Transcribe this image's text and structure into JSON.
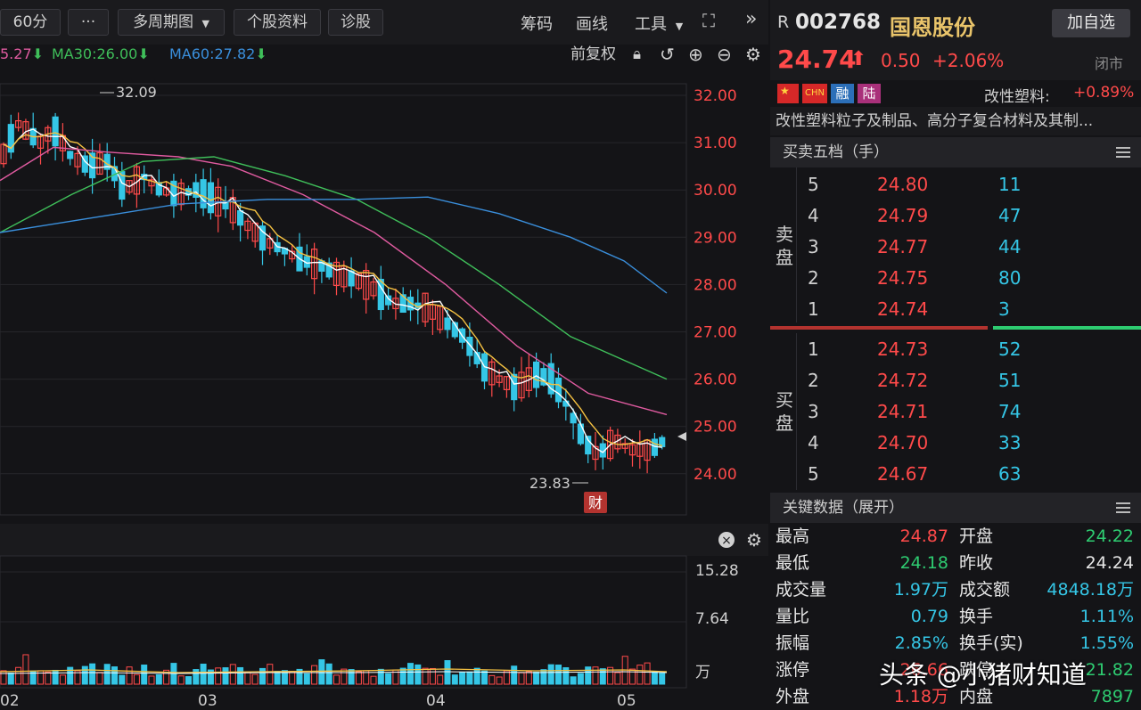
{
  "toolbar": {
    "period": "60分",
    "more": "···",
    "multi_period": "多周期图",
    "stock_info": "个股资料",
    "diagnose": "诊股",
    "chips": "筹码",
    "draw": "画线",
    "tools": "工具"
  },
  "ma_legend": {
    "ma_partial": "5.27",
    "ma30": "MA30:26.00",
    "ma60": "MA60:27.82",
    "adjust": "前复权"
  },
  "chart": {
    "y_labels": [
      "32.00",
      "31.00",
      "30.00",
      "29.00",
      "28.00",
      "27.00",
      "26.00",
      "25.00",
      "24.00"
    ],
    "high_marker": "32.09",
    "low_marker": "23.83",
    "cai_badge": "财",
    "vol_labels": [
      "15.28",
      "7.64",
      "万"
    ],
    "x_labels": [
      "02",
      "03",
      "04",
      "05"
    ]
  },
  "quote": {
    "r_tag": "R",
    "code": "002768",
    "name": "国恩股份",
    "add_watch": "加自选",
    "price": "24.74",
    "change": "0.50",
    "change_pct": "+2.06%",
    "status": "闭市",
    "tags": [
      "CHN",
      "融",
      "陆"
    ],
    "sector_label": "改性塑料:",
    "sector_pct": "+0.89%",
    "business": "改性塑料粒子及制品、高分子复合材料及其制..."
  },
  "orderbook": {
    "title": "买卖五档（手）",
    "sell_label": "卖盘",
    "buy_label": "买盘",
    "sell": [
      {
        "lvl": "5",
        "price": "24.80",
        "vol": "11"
      },
      {
        "lvl": "4",
        "price": "24.79",
        "vol": "47"
      },
      {
        "lvl": "3",
        "price": "24.77",
        "vol": "44"
      },
      {
        "lvl": "2",
        "price": "24.75",
        "vol": "80"
      },
      {
        "lvl": "1",
        "price": "24.74",
        "vol": "3"
      }
    ],
    "buy": [
      {
        "lvl": "1",
        "price": "24.73",
        "vol": "52"
      },
      {
        "lvl": "2",
        "price": "24.72",
        "vol": "51"
      },
      {
        "lvl": "3",
        "price": "24.71",
        "vol": "74"
      },
      {
        "lvl": "4",
        "price": "24.70",
        "vol": "33"
      },
      {
        "lvl": "5",
        "price": "24.67",
        "vol": "63"
      }
    ]
  },
  "keydata": {
    "title": "关键数据（展开）",
    "rows": [
      {
        "k1": "最高",
        "v1": "24.87",
        "c1": "red",
        "k2": "开盘",
        "v2": "24.22",
        "c2": "green"
      },
      {
        "k1": "最低",
        "v1": "24.18",
        "c1": "green",
        "k2": "昨收",
        "v2": "24.24",
        "c2": "white"
      },
      {
        "k1": "成交量",
        "v1": "1.97万",
        "c1": "cyan",
        "k2": "成交额",
        "v2": "4848.18万",
        "c2": "cyan"
      },
      {
        "k1": "量比",
        "v1": "0.79",
        "c1": "cyan",
        "k2": "换手",
        "v2": "1.11%",
        "c2": "cyan"
      },
      {
        "k1": "振幅",
        "v1": "2.85%",
        "c1": "cyan",
        "k2": "换手(实)",
        "v2": "1.55%",
        "c2": "cyan"
      },
      {
        "k1": "涨停",
        "v1": "26.66",
        "c1": "red",
        "k2": "跌停",
        "v2": "21.82",
        "c2": "green"
      },
      {
        "k1": "外盘",
        "v1": "1.18万",
        "c1": "red",
        "k2": "内盘",
        "v2": "7897",
        "c2": "green"
      }
    ]
  },
  "watermark": "头条 @小猪财知道",
  "colors": {
    "up": "#ff4a4a",
    "down": "#35c6e6",
    "ma5": "#ffffff",
    "ma10": "#f5c242",
    "ma20": "#e05ba0",
    "ma30": "#3fbf5a",
    "ma60": "#3a8fdc"
  }
}
